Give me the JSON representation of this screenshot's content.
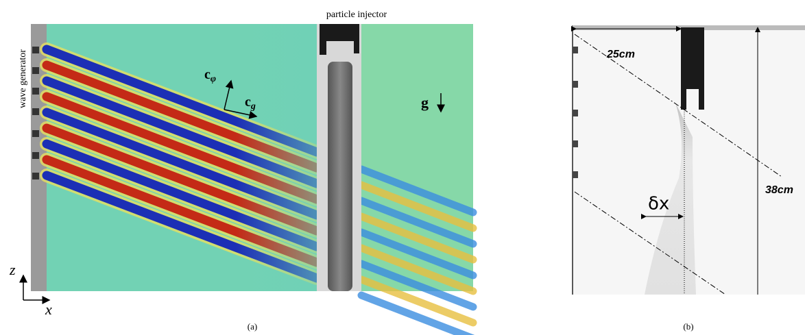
{
  "panel_a": {
    "top_label": "particle injector",
    "side_label": "wave generator",
    "c_phi": {
      "main": "c",
      "sub": "φ"
    },
    "c_g": {
      "main": "c",
      "sub": "g"
    },
    "gravity": "g",
    "axis_z": "z",
    "axis_x": "x",
    "caption": "(a)"
  },
  "panel_b": {
    "width_label": "25cm",
    "height_label": "38cm",
    "offset_label": "δx",
    "caption": "(b)"
  }
}
